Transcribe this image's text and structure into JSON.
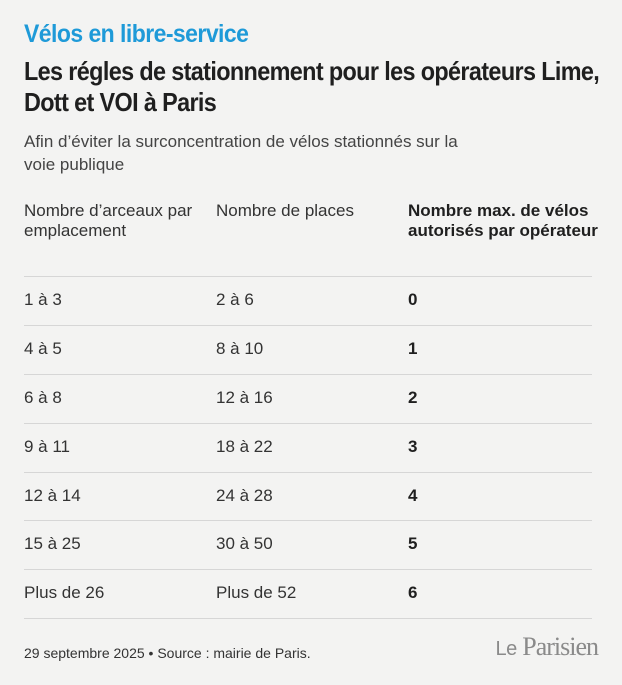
{
  "header": {
    "kicker": "Vélos en libre-service",
    "title": "Les régles de stationnement pour les opérateurs Lime, Dott et VOI à Paris",
    "subtitle": "Afin d’éviter la surconcentration de vélos stationnés sur la voie publique"
  },
  "table": {
    "columns": [
      "Nombre d’arceaux par emplacement",
      "Nombre de places",
      "Nombre max. de vélos autorisés par opérateur"
    ],
    "rows": [
      [
        "1 à 3",
        "2 à 6",
        "0"
      ],
      [
        "4 à 5",
        "8 à 10",
        "1"
      ],
      [
        "6 à 8",
        "12 à 16",
        "2"
      ],
      [
        "9 à 11",
        "18 à 22",
        "3"
      ],
      [
        "12 à 14",
        "24 à 28",
        "4"
      ],
      [
        "15 à 25",
        "30 à 50",
        "5"
      ],
      [
        "Plus de 26",
        "Plus de 52",
        "6"
      ]
    ]
  },
  "footer": {
    "note": "29 septembre 2025 • Source : mairie de Paris.",
    "logo_le": "Le",
    "logo_name": "Parisien"
  },
  "colors": {
    "kicker": "#1e9ad8",
    "background": "#f3f3f2"
  }
}
